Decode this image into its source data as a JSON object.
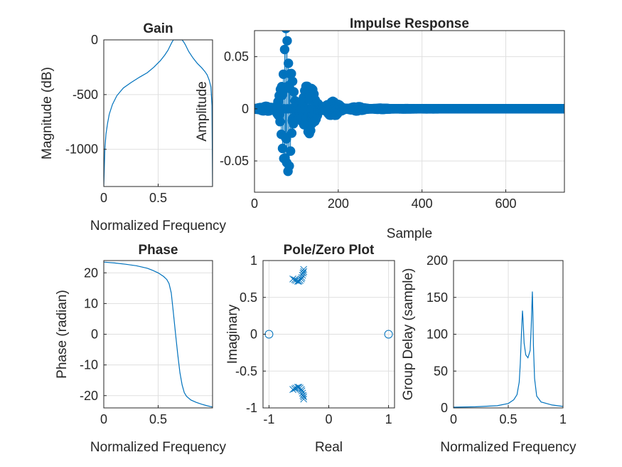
{
  "figure": {
    "colors": {
      "series": "#0072BD",
      "axis": "#262626",
      "grid": "#dfdfdf",
      "background": "#ffffff"
    }
  },
  "chart_data": [
    {
      "id": "gain",
      "type": "line",
      "title": "Gain",
      "xlabel": "Normalized Frequency",
      "ylabel": "Magnitude (dB)",
      "xlim": [
        0,
        1
      ],
      "ylim": [
        -1340,
        0
      ],
      "xticks": [
        0,
        0.5
      ],
      "xtick_labels": [
        "0",
        "0.5"
      ],
      "yticks": [
        0,
        -500,
        -1000
      ],
      "ytick_labels": [
        "0",
        "-500",
        "-1000"
      ],
      "grid": true,
      "series": [
        {
          "x": [
            0.0,
            0.004,
            0.01,
            0.02,
            0.035,
            0.05,
            0.08,
            0.12,
            0.18,
            0.25,
            0.33,
            0.4,
            0.46,
            0.52,
            0.56,
            0.59,
            0.61,
            0.625,
            0.635,
            0.64,
            0.66,
            0.7,
            0.72,
            0.735,
            0.75,
            0.78,
            0.82,
            0.86,
            0.9,
            0.93,
            0.95,
            0.97,
            0.985,
            0.995,
            1.0
          ],
          "y": [
            -1330,
            -1200,
            -1000,
            -860,
            -760,
            -680,
            -590,
            -510,
            -440,
            -390,
            -340,
            -300,
            -250,
            -190,
            -140,
            -95,
            -55,
            -25,
            -8,
            0,
            0,
            0,
            0,
            -20,
            -45,
            -105,
            -165,
            -215,
            -255,
            -290,
            -320,
            -370,
            -430,
            -600,
            -1330
          ]
        }
      ]
    },
    {
      "id": "impulse",
      "type": "stem",
      "title": "Impulse Response",
      "xlabel": "Sample",
      "ylabel": "Amplitude",
      "xlim": [
        0,
        740
      ],
      "ylim": [
        -0.08,
        0.075
      ],
      "xticks": [
        0,
        200,
        400,
        600
      ],
      "xtick_labels": [
        "0",
        "200",
        "400",
        "600"
      ],
      "yticks": [
        0.05,
        0,
        -0.05
      ],
      "ytick_labels": [
        "0.05",
        "0",
        "-0.05"
      ],
      "grid": true,
      "n_samples": 740,
      "approx_model": {
        "peak_sample": 75,
        "peak_amplitude": 0.077,
        "decay_before": 15,
        "decay_after": 48,
        "period_samples": 3.2,
        "beat_period_samples": 58
      }
    },
    {
      "id": "phase",
      "type": "line",
      "title": "Phase",
      "xlabel": "Normalized Frequency",
      "ylabel": "Phase (radian)",
      "xlim": [
        0,
        1
      ],
      "ylim": [
        -24,
        24
      ],
      "xticks": [
        0,
        0.5
      ],
      "xtick_labels": [
        "0",
        "0.5"
      ],
      "yticks": [
        20,
        10,
        0,
        -10,
        -20
      ],
      "ytick_labels": [
        "20",
        "10",
        "0",
        "-10",
        "-20"
      ],
      "grid": true,
      "series": [
        {
          "x": [
            0.0,
            0.1,
            0.2,
            0.3,
            0.4,
            0.45,
            0.5,
            0.55,
            0.58,
            0.6,
            0.62,
            0.64,
            0.66,
            0.68,
            0.7,
            0.72,
            0.74,
            0.76,
            0.8,
            0.85,
            0.9,
            0.95,
            1.0
          ],
          "y": [
            23.5,
            23.2,
            22.8,
            22.3,
            21.5,
            20.8,
            20.0,
            18.8,
            17.8,
            16.5,
            13.5,
            7.0,
            0.0,
            -6.5,
            -12.5,
            -16.5,
            -19.0,
            -20.2,
            -21.4,
            -22.2,
            -22.8,
            -23.3,
            -23.7
          ]
        }
      ]
    },
    {
      "id": "polezero",
      "type": "scatter",
      "title": "Pole/Zero Plot",
      "xlabel": "Real",
      "ylabel": "Imaginary",
      "xlim": [
        -1.1,
        1.1
      ],
      "ylim": [
        -1,
        1
      ],
      "xticks": [
        -1,
        0,
        1
      ],
      "xtick_labels": [
        "-1",
        "0",
        "1"
      ],
      "yticks": [
        1,
        0.5,
        0,
        -0.5,
        -1
      ],
      "ytick_labels": [
        "1",
        "0.5",
        "0",
        "-0.5",
        "-1"
      ],
      "grid": true,
      "zeros": [
        [
          -1,
          0
        ],
        [
          1,
          0
        ]
      ],
      "poles": [
        [
          -0.6,
          0.75
        ],
        [
          -0.57,
          0.74
        ],
        [
          -0.55,
          0.73
        ],
        [
          -0.52,
          0.72
        ],
        [
          -0.5,
          0.72
        ],
        [
          -0.48,
          0.73
        ],
        [
          -0.46,
          0.75
        ],
        [
          -0.45,
          0.77
        ],
        [
          -0.44,
          0.8
        ],
        [
          -0.43,
          0.83
        ],
        [
          -0.42,
          0.85
        ],
        [
          -0.42,
          0.88
        ],
        [
          -0.6,
          -0.75
        ],
        [
          -0.57,
          -0.74
        ],
        [
          -0.55,
          -0.73
        ],
        [
          -0.52,
          -0.72
        ],
        [
          -0.5,
          -0.72
        ],
        [
          -0.48,
          -0.73
        ],
        [
          -0.46,
          -0.75
        ],
        [
          -0.45,
          -0.77
        ],
        [
          -0.44,
          -0.8
        ],
        [
          -0.43,
          -0.83
        ],
        [
          -0.42,
          -0.85
        ],
        [
          -0.42,
          -0.88
        ]
      ]
    },
    {
      "id": "groupdelay",
      "type": "line",
      "title": "",
      "xlabel": "Normalized Frequency",
      "ylabel": "Group Delay (sample)",
      "xlim": [
        0,
        1
      ],
      "ylim": [
        0,
        200
      ],
      "xticks": [
        0,
        0.5,
        1
      ],
      "xtick_labels": [
        "0",
        "0.5",
        "1"
      ],
      "yticks": [
        200,
        150,
        100,
        50,
        0
      ],
      "ytick_labels": [
        "200",
        "150",
        "100",
        "50",
        "0"
      ],
      "grid": true,
      "series": [
        {
          "x": [
            0.0,
            0.2,
            0.4,
            0.5,
            0.55,
            0.58,
            0.6,
            0.61,
            0.62,
            0.63,
            0.635,
            0.645,
            0.66,
            0.68,
            0.7,
            0.71,
            0.72,
            0.725,
            0.73,
            0.74,
            0.76,
            0.8,
            0.9,
            1.0
          ],
          "y": [
            1,
            1.5,
            3,
            6,
            11,
            18,
            35,
            60,
            100,
            132,
            120,
            88,
            72,
            68,
            78,
            110,
            158,
            130,
            85,
            40,
            16,
            8,
            4,
            2
          ]
        }
      ]
    }
  ]
}
